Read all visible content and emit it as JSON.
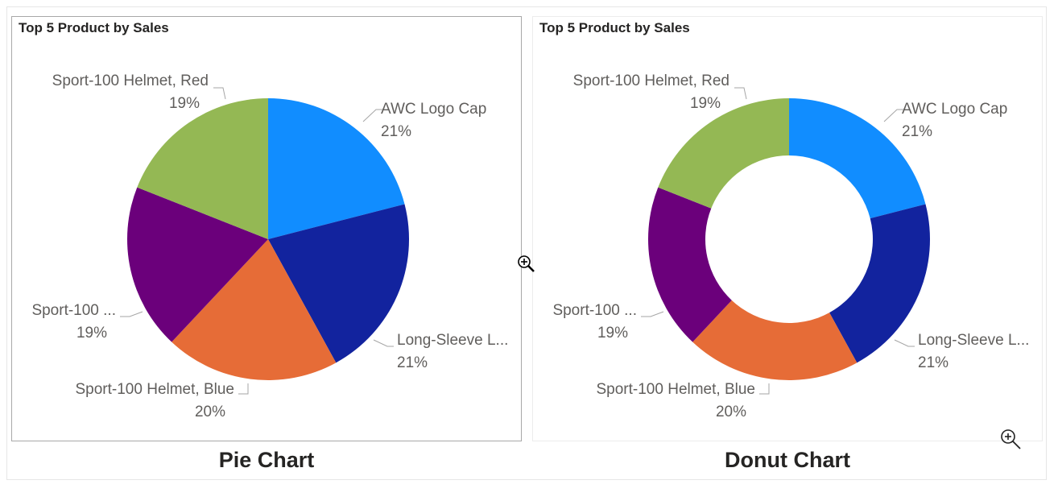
{
  "charts": {
    "pie": {
      "caption": "Pie Chart"
    },
    "donut": {
      "caption": "Donut Chart"
    }
  },
  "chart_data": [
    {
      "type": "pie",
      "title": "Top 5 Product by Sales",
      "categories": [
        "AWC Logo Cap",
        "Long-Sleeve L...",
        "Sport-100 Helmet, Blue",
        "Sport-100 ...",
        "Sport-100 Helmet, Red"
      ],
      "values": [
        21,
        21,
        20,
        19,
        19
      ],
      "labels": [
        "21%",
        "21%",
        "20%",
        "19%",
        "19%"
      ],
      "colors": [
        "#118DFF",
        "#12239E",
        "#E66C37",
        "#6B007B",
        "#94B854"
      ]
    },
    {
      "type": "donut",
      "title": "Top 5 Product by Sales",
      "categories": [
        "AWC Logo Cap",
        "Long-Sleeve L...",
        "Sport-100 Helmet, Blue",
        "Sport-100 ...",
        "Sport-100 Helmet, Red"
      ],
      "values": [
        21,
        21,
        20,
        19,
        19
      ],
      "labels": [
        "21%",
        "21%",
        "20%",
        "19%",
        "19%"
      ],
      "colors": [
        "#118DFF",
        "#12239E",
        "#E66C37",
        "#6B007B",
        "#94B854"
      ]
    }
  ],
  "icons": {
    "cursor": "zoom-cursor-icon",
    "focus": "zoom-in-icon"
  }
}
